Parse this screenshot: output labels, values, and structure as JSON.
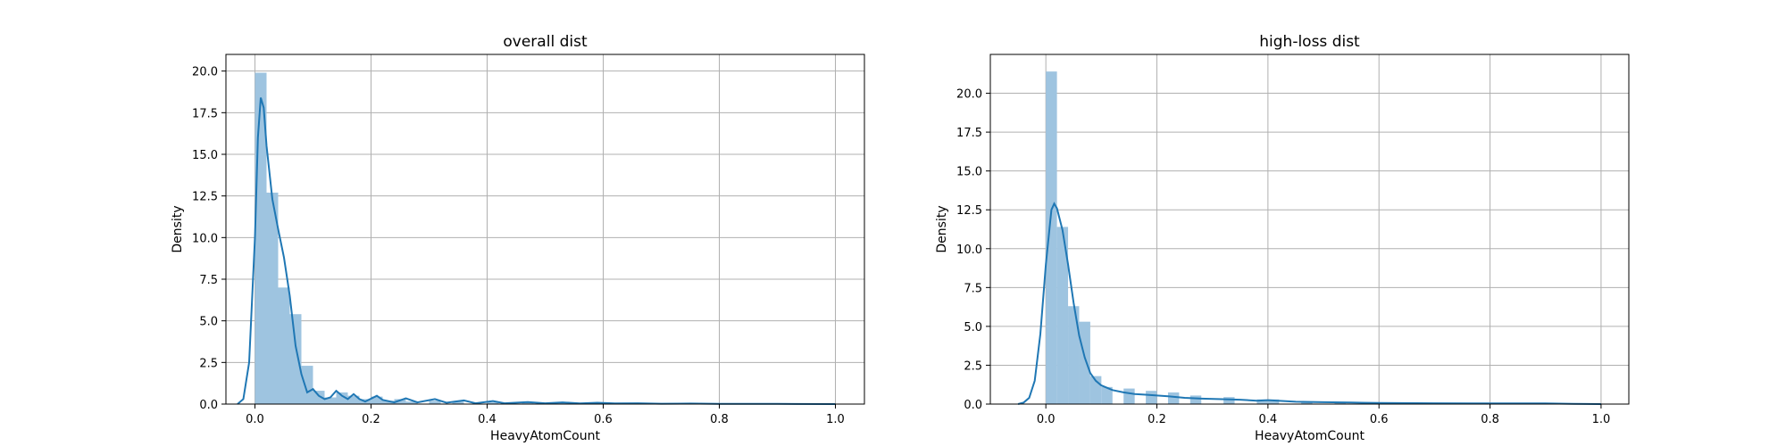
{
  "chart_data": [
    {
      "type": "histogram+kde",
      "title": "overall dist",
      "xlabel": "HeavyAtomCount",
      "ylabel": "Density",
      "xlim": [
        -0.05,
        1.05
      ],
      "ylim": [
        0,
        21
      ],
      "xticks": [
        0.0,
        0.2,
        0.4,
        0.6,
        0.8,
        1.0
      ],
      "yticks": [
        0.0,
        2.5,
        5.0,
        7.5,
        10.0,
        12.5,
        15.0,
        17.5,
        20.0
      ],
      "grid": true,
      "bar_color": "#9ec4e0",
      "line_color": "#1f77b4",
      "bin_width": 0.02,
      "bins": [
        {
          "x": 0.0,
          "density": 19.9
        },
        {
          "x": 0.02,
          "density": 12.7
        },
        {
          "x": 0.04,
          "density": 7.0
        },
        {
          "x": 0.06,
          "density": 5.4
        },
        {
          "x": 0.08,
          "density": 2.3
        },
        {
          "x": 0.1,
          "density": 0.8
        },
        {
          "x": 0.12,
          "density": 0.4
        },
        {
          "x": 0.14,
          "density": 0.7
        },
        {
          "x": 0.16,
          "density": 0.5
        },
        {
          "x": 0.18,
          "density": 0.3
        },
        {
          "x": 0.2,
          "density": 0.45
        },
        {
          "x": 0.22,
          "density": 0.2
        },
        {
          "x": 0.24,
          "density": 0.3
        },
        {
          "x": 0.26,
          "density": 0.15
        },
        {
          "x": 0.3,
          "density": 0.2
        },
        {
          "x": 0.34,
          "density": 0.15
        },
        {
          "x": 0.4,
          "density": 0.1
        },
        {
          "x": 0.46,
          "density": 0.08
        },
        {
          "x": 0.52,
          "density": 0.06
        },
        {
          "x": 0.58,
          "density": 0.05
        },
        {
          "x": 0.66,
          "density": 0.03
        },
        {
          "x": 0.8,
          "density": 0.02
        }
      ],
      "kde": [
        [
          -0.03,
          0.0
        ],
        [
          -0.02,
          0.3
        ],
        [
          -0.01,
          2.5
        ],
        [
          0.0,
          10.0
        ],
        [
          0.005,
          16.0
        ],
        [
          0.01,
          18.4
        ],
        [
          0.015,
          17.8
        ],
        [
          0.02,
          15.5
        ],
        [
          0.03,
          12.3
        ],
        [
          0.04,
          10.5
        ],
        [
          0.05,
          8.8
        ],
        [
          0.06,
          6.5
        ],
        [
          0.07,
          3.5
        ],
        [
          0.08,
          1.8
        ],
        [
          0.09,
          0.7
        ],
        [
          0.1,
          0.9
        ],
        [
          0.11,
          0.5
        ],
        [
          0.12,
          0.3
        ],
        [
          0.13,
          0.4
        ],
        [
          0.14,
          0.8
        ],
        [
          0.15,
          0.5
        ],
        [
          0.16,
          0.3
        ],
        [
          0.17,
          0.6
        ],
        [
          0.18,
          0.3
        ],
        [
          0.19,
          0.15
        ],
        [
          0.21,
          0.5
        ],
        [
          0.22,
          0.25
        ],
        [
          0.24,
          0.1
        ],
        [
          0.26,
          0.35
        ],
        [
          0.28,
          0.1
        ],
        [
          0.31,
          0.3
        ],
        [
          0.33,
          0.08
        ],
        [
          0.36,
          0.22
        ],
        [
          0.38,
          0.05
        ],
        [
          0.41,
          0.18
        ],
        [
          0.43,
          0.05
        ],
        [
          0.47,
          0.12
        ],
        [
          0.5,
          0.05
        ],
        [
          0.53,
          0.1
        ],
        [
          0.56,
          0.04
        ],
        [
          0.59,
          0.08
        ],
        [
          0.62,
          0.04
        ],
        [
          0.66,
          0.05
        ],
        [
          0.7,
          0.02
        ],
        [
          0.75,
          0.03
        ],
        [
          0.8,
          0.01
        ],
        [
          0.9,
          0.01
        ],
        [
          1.0,
          0.0
        ]
      ]
    },
    {
      "type": "histogram+kde",
      "title": "high-loss dist",
      "xlabel": "HeavyAtomCount",
      "ylabel": "Density",
      "xlim": [
        -0.1,
        1.05
      ],
      "ylim": [
        0,
        22.5
      ],
      "xticks": [
        0.0,
        0.2,
        0.4,
        0.6,
        0.8,
        1.0
      ],
      "yticks": [
        0.0,
        2.5,
        5.0,
        7.5,
        10.0,
        12.5,
        15.0,
        17.5,
        20.0
      ],
      "grid": true,
      "bar_color": "#9ec4e0",
      "line_color": "#1f77b4",
      "bin_width": 0.02,
      "bins": [
        {
          "x": 0.0,
          "density": 21.4
        },
        {
          "x": 0.02,
          "density": 11.4
        },
        {
          "x": 0.04,
          "density": 6.3
        },
        {
          "x": 0.06,
          "density": 5.3
        },
        {
          "x": 0.08,
          "density": 1.8
        },
        {
          "x": 0.1,
          "density": 1.1
        },
        {
          "x": 0.14,
          "density": 1.0
        },
        {
          "x": 0.18,
          "density": 0.85
        },
        {
          "x": 0.22,
          "density": 0.75
        },
        {
          "x": 0.26,
          "density": 0.55
        },
        {
          "x": 0.32,
          "density": 0.45
        },
        {
          "x": 0.38,
          "density": 0.3
        },
        {
          "x": 0.4,
          "density": 0.3
        },
        {
          "x": 0.46,
          "density": 0.15
        },
        {
          "x": 0.52,
          "density": 0.1
        },
        {
          "x": 0.58,
          "density": 0.08
        },
        {
          "x": 0.72,
          "density": 0.05
        },
        {
          "x": 0.9,
          "density": 0.05
        }
      ],
      "kde": [
        [
          -0.05,
          0.0
        ],
        [
          -0.04,
          0.1
        ],
        [
          -0.03,
          0.4
        ],
        [
          -0.02,
          1.5
        ],
        [
          -0.01,
          4.5
        ],
        [
          0.0,
          9.0
        ],
        [
          0.01,
          12.5
        ],
        [
          0.015,
          12.9
        ],
        [
          0.02,
          12.6
        ],
        [
          0.03,
          11.2
        ],
        [
          0.04,
          9.0
        ],
        [
          0.05,
          6.5
        ],
        [
          0.06,
          4.4
        ],
        [
          0.07,
          3.0
        ],
        [
          0.08,
          2.0
        ],
        [
          0.09,
          1.5
        ],
        [
          0.1,
          1.2
        ],
        [
          0.12,
          0.9
        ],
        [
          0.14,
          0.75
        ],
        [
          0.16,
          0.65
        ],
        [
          0.18,
          0.6
        ],
        [
          0.2,
          0.55
        ],
        [
          0.22,
          0.5
        ],
        [
          0.25,
          0.4
        ],
        [
          0.28,
          0.35
        ],
        [
          0.31,
          0.32
        ],
        [
          0.35,
          0.28
        ],
        [
          0.38,
          0.22
        ],
        [
          0.4,
          0.25
        ],
        [
          0.45,
          0.15
        ],
        [
          0.5,
          0.12
        ],
        [
          0.55,
          0.1
        ],
        [
          0.6,
          0.07
        ],
        [
          0.7,
          0.05
        ],
        [
          0.8,
          0.04
        ],
        [
          0.9,
          0.04
        ],
        [
          0.95,
          0.02
        ],
        [
          1.0,
          0.0
        ]
      ]
    }
  ]
}
